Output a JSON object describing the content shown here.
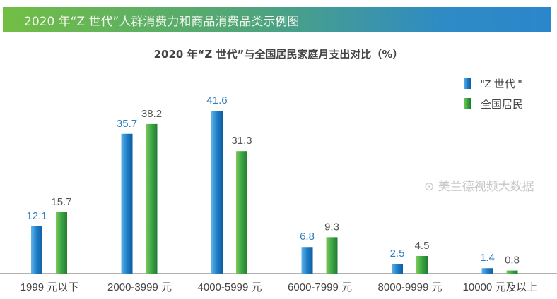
{
  "banner_title": "2020 年“Z 世代”人群消费力和商品消费品类示例图",
  "watermark": "美兰德视频大数据",
  "colors": {
    "z_gen": "#1f7fc8",
    "national": "#3aa645",
    "z_label": "#2f7fc0",
    "national_label": "#555555"
  },
  "chart_data": {
    "type": "bar",
    "title": "2020 年“Z 世代”与全国居民家庭月支出对比（%）",
    "categories": [
      "1999 元以下",
      "2000-3999 元",
      "4000-5999 元",
      "6000-7999 元",
      "8000-9999 元",
      "10000 元及以上"
    ],
    "series": [
      {
        "name": "\"Z 世代 \"",
        "values": [
          12.1,
          35.7,
          41.6,
          6.8,
          2.5,
          1.4
        ]
      },
      {
        "name": "全国居民",
        "values": [
          15.7,
          38.2,
          31.3,
          9.3,
          4.5,
          0.8
        ]
      }
    ],
    "ylim": [
      0,
      45
    ],
    "grid": false,
    "legend": "top-right"
  }
}
